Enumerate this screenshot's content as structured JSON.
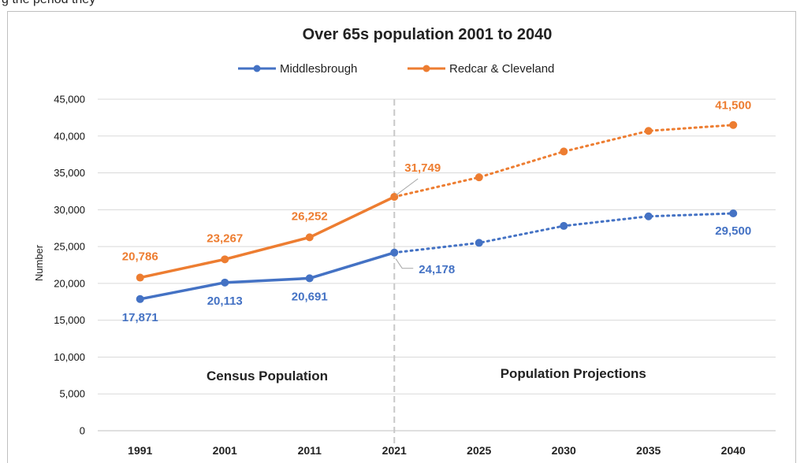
{
  "page": {
    "caption_fragment": "g the period they"
  },
  "chart_data": {
    "type": "line",
    "title": "Over 65s population 2001 to 2040",
    "xlabel": "",
    "ylabel": "Number",
    "categories": [
      "1991",
      "2001",
      "2011",
      "2021",
      "2025",
      "2030",
      "2035",
      "2040"
    ],
    "ylim": [
      0,
      45000
    ],
    "yticks": [
      0,
      5000,
      10000,
      15000,
      20000,
      25000,
      30000,
      35000,
      40000,
      45000
    ],
    "ytick_labels": [
      "0",
      "5,000",
      "10,000",
      "15,000",
      "20,000",
      "25,000",
      "30,000",
      "35,000",
      "40,000",
      "45,000"
    ],
    "grid": true,
    "legend_position": "top",
    "projection_start_index": 3,
    "section_labels": [
      "Census Population",
      "Population Projections"
    ],
    "series": [
      {
        "name": "Middlesbrough",
        "color": "#4472c4",
        "values": [
          17871,
          20113,
          20691,
          24178,
          25500,
          27800,
          29100,
          29500
        ],
        "labels": [
          "17,871",
          "20,113",
          "20,691",
          "24,178",
          "",
          "",
          "",
          "29,500"
        ]
      },
      {
        "name": "Redcar & Cleveland",
        "color": "#ed7d31",
        "values": [
          20786,
          23267,
          26252,
          31749,
          34400,
          37900,
          40700,
          41500
        ],
        "labels": [
          "20,786",
          "23,267",
          "26,252",
          "31,749",
          "",
          "",
          "",
          "41,500"
        ]
      }
    ]
  }
}
